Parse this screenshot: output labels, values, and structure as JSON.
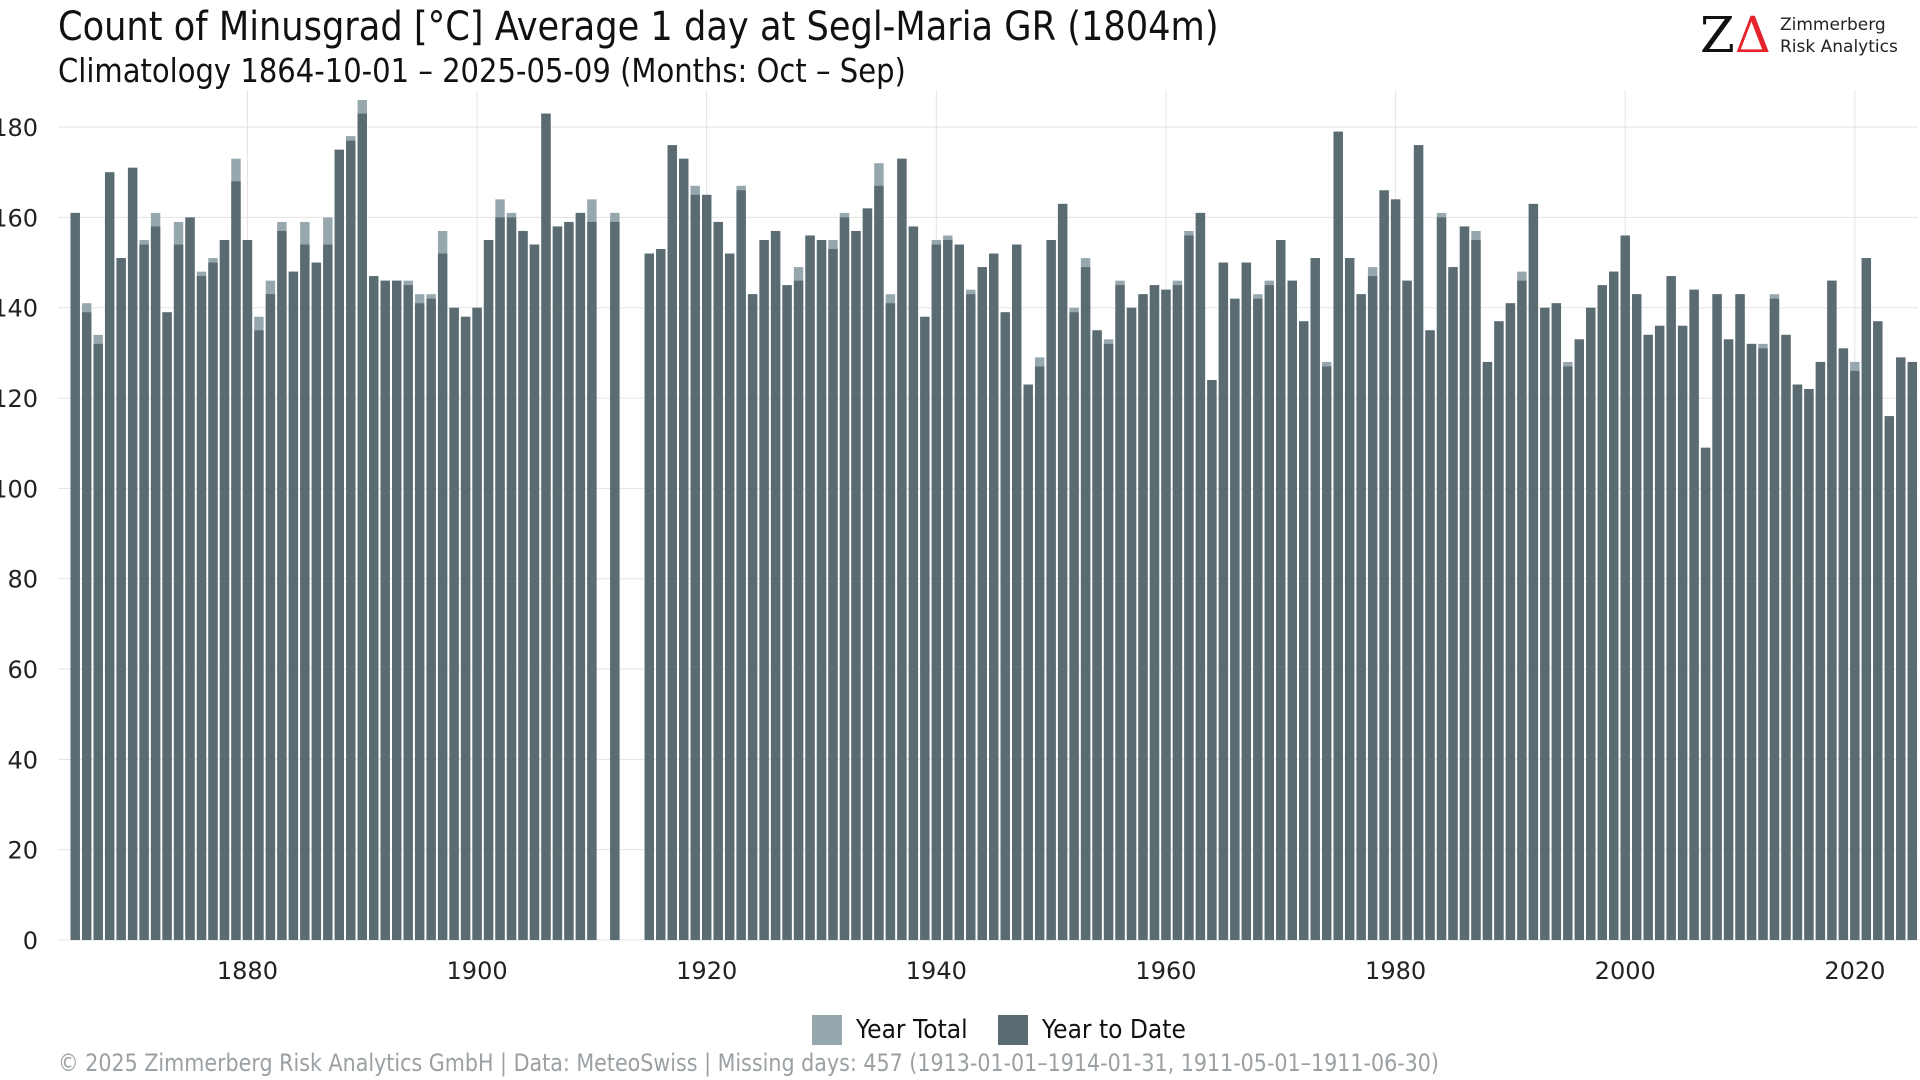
{
  "chart_data": {
    "type": "bar",
    "title": "Count of Minusgrad [°C] Average 1 day at Segl-Maria  GR (1804m)",
    "subtitle": "Climatology 1864-10-01 – 2025-05-09 (Months: Oct – Sep)",
    "xlim": [
      1864,
      2025
    ],
    "ylim": [
      0,
      186
    ],
    "y_ticks": [
      0,
      20,
      40,
      60,
      80,
      100,
      120,
      140,
      160,
      180
    ],
    "x_ticks": [
      1880,
      1900,
      1920,
      1940,
      1960,
      1980,
      2000,
      2020
    ],
    "grid": true,
    "legend_position": "bottom",
    "x": [
      1865,
      1866,
      1867,
      1868,
      1869,
      1870,
      1871,
      1872,
      1873,
      1874,
      1875,
      1876,
      1877,
      1878,
      1879,
      1880,
      1881,
      1882,
      1883,
      1884,
      1885,
      1886,
      1887,
      1888,
      1889,
      1890,
      1891,
      1892,
      1893,
      1894,
      1895,
      1896,
      1897,
      1898,
      1899,
      1900,
      1901,
      1902,
      1903,
      1904,
      1905,
      1906,
      1907,
      1908,
      1909,
      1910,
      1911,
      1912,
      1913,
      1914,
      1915,
      1916,
      1917,
      1918,
      1919,
      1920,
      1921,
      1922,
      1923,
      1924,
      1925,
      1926,
      1927,
      1928,
      1929,
      1930,
      1931,
      1932,
      1933,
      1934,
      1935,
      1936,
      1937,
      1938,
      1939,
      1940,
      1941,
      1942,
      1943,
      1944,
      1945,
      1946,
      1947,
      1948,
      1949,
      1950,
      1951,
      1952,
      1953,
      1954,
      1955,
      1956,
      1957,
      1958,
      1959,
      1960,
      1961,
      1962,
      1963,
      1964,
      1965,
      1966,
      1967,
      1968,
      1969,
      1970,
      1971,
      1972,
      1973,
      1974,
      1975,
      1976,
      1977,
      1978,
      1979,
      1980,
      1981,
      1982,
      1983,
      1984,
      1985,
      1986,
      1987,
      1988,
      1989,
      1990,
      1991,
      1992,
      1993,
      1994,
      1995,
      1996,
      1997,
      1998,
      1999,
      2000,
      2001,
      2002,
      2003,
      2004,
      2005,
      2006,
      2007,
      2008,
      2009,
      2010,
      2011,
      2012,
      2013,
      2014,
      2015,
      2016,
      2017,
      2018,
      2019,
      2020,
      2021,
      2022,
      2023,
      2024,
      2025
    ],
    "series": [
      {
        "name": "Year Total",
        "color": "#97a7ae",
        "values": [
          161,
          141,
          134,
          170,
          151,
          171,
          155,
          161,
          139,
          159,
          160,
          148,
          151,
          155,
          173,
          155,
          138,
          146,
          159,
          148,
          159,
          150,
          160,
          175,
          178,
          186,
          147,
          146,
          146,
          146,
          143,
          143,
          157,
          140,
          138,
          140,
          155,
          164,
          161,
          157,
          154,
          183,
          158,
          159,
          161,
          164,
          null,
          161,
          null,
          null,
          152,
          153,
          176,
          173,
          167,
          165,
          159,
          152,
          167,
          143,
          155,
          157,
          145,
          149,
          156,
          155,
          155,
          161,
          157,
          162,
          172,
          143,
          173,
          158,
          138,
          155,
          156,
          154,
          144,
          149,
          152,
          139,
          154,
          123,
          129,
          155,
          163,
          140,
          151,
          135,
          133,
          146,
          140,
          143,
          145,
          144,
          146,
          157,
          161,
          124,
          150,
          142,
          150,
          143,
          146,
          155,
          146,
          137,
          151,
          128,
          179,
          151,
          143,
          149,
          166,
          164,
          146,
          176,
          135,
          161,
          149,
          158,
          157,
          128,
          137,
          141,
          148,
          163,
          140,
          141,
          128,
          133,
          140,
          145,
          148,
          156,
          143,
          134,
          136,
          147,
          136,
          144,
          109,
          143,
          133,
          143,
          132,
          132,
          143,
          134,
          123,
          122,
          128,
          146,
          131,
          128,
          151,
          137,
          116,
          129,
          128
        ]
      },
      {
        "name": "Year to Date",
        "color": "#5a6b72",
        "values": [
          161,
          139,
          132,
          170,
          151,
          171,
          154,
          158,
          139,
          154,
          160,
          147,
          150,
          155,
          168,
          155,
          135,
          143,
          157,
          148,
          154,
          150,
          154,
          175,
          177,
          183,
          147,
          146,
          146,
          145,
          141,
          142,
          152,
          140,
          138,
          140,
          155,
          160,
          160,
          157,
          154,
          183,
          158,
          159,
          161,
          159,
          null,
          159,
          null,
          null,
          152,
          153,
          176,
          173,
          165,
          165,
          159,
          152,
          166,
          143,
          155,
          157,
          145,
          146,
          156,
          155,
          153,
          160,
          157,
          162,
          167,
          141,
          173,
          158,
          138,
          154,
          155,
          154,
          143,
          149,
          152,
          139,
          154,
          123,
          127,
          155,
          163,
          139,
          149,
          135,
          132,
          145,
          140,
          143,
          145,
          144,
          145,
          156,
          161,
          124,
          150,
          142,
          150,
          142,
          145,
          155,
          146,
          137,
          151,
          127,
          179,
          151,
          143,
          147,
          166,
          164,
          146,
          176,
          135,
          160,
          149,
          158,
          155,
          128,
          137,
          141,
          146,
          163,
          140,
          141,
          127,
          133,
          140,
          145,
          148,
          156,
          143,
          134,
          136,
          147,
          136,
          144,
          109,
          143,
          133,
          143,
          132,
          131,
          142,
          134,
          123,
          122,
          128,
          146,
          131,
          126,
          151,
          137,
          116,
          129,
          128
        ]
      }
    ],
    "caption": "©  2025 Zimmerberg Risk Analytics GmbH | Data: MeteoSwiss | Missing days: 457 (1913-01-01–1914-01-31, 1911-05-01–1911-06-30)"
  },
  "logo": {
    "mark_z": "Z",
    "mark_delta": "Δ",
    "line1": "Zimmerberg",
    "line2": "Risk Analytics"
  }
}
